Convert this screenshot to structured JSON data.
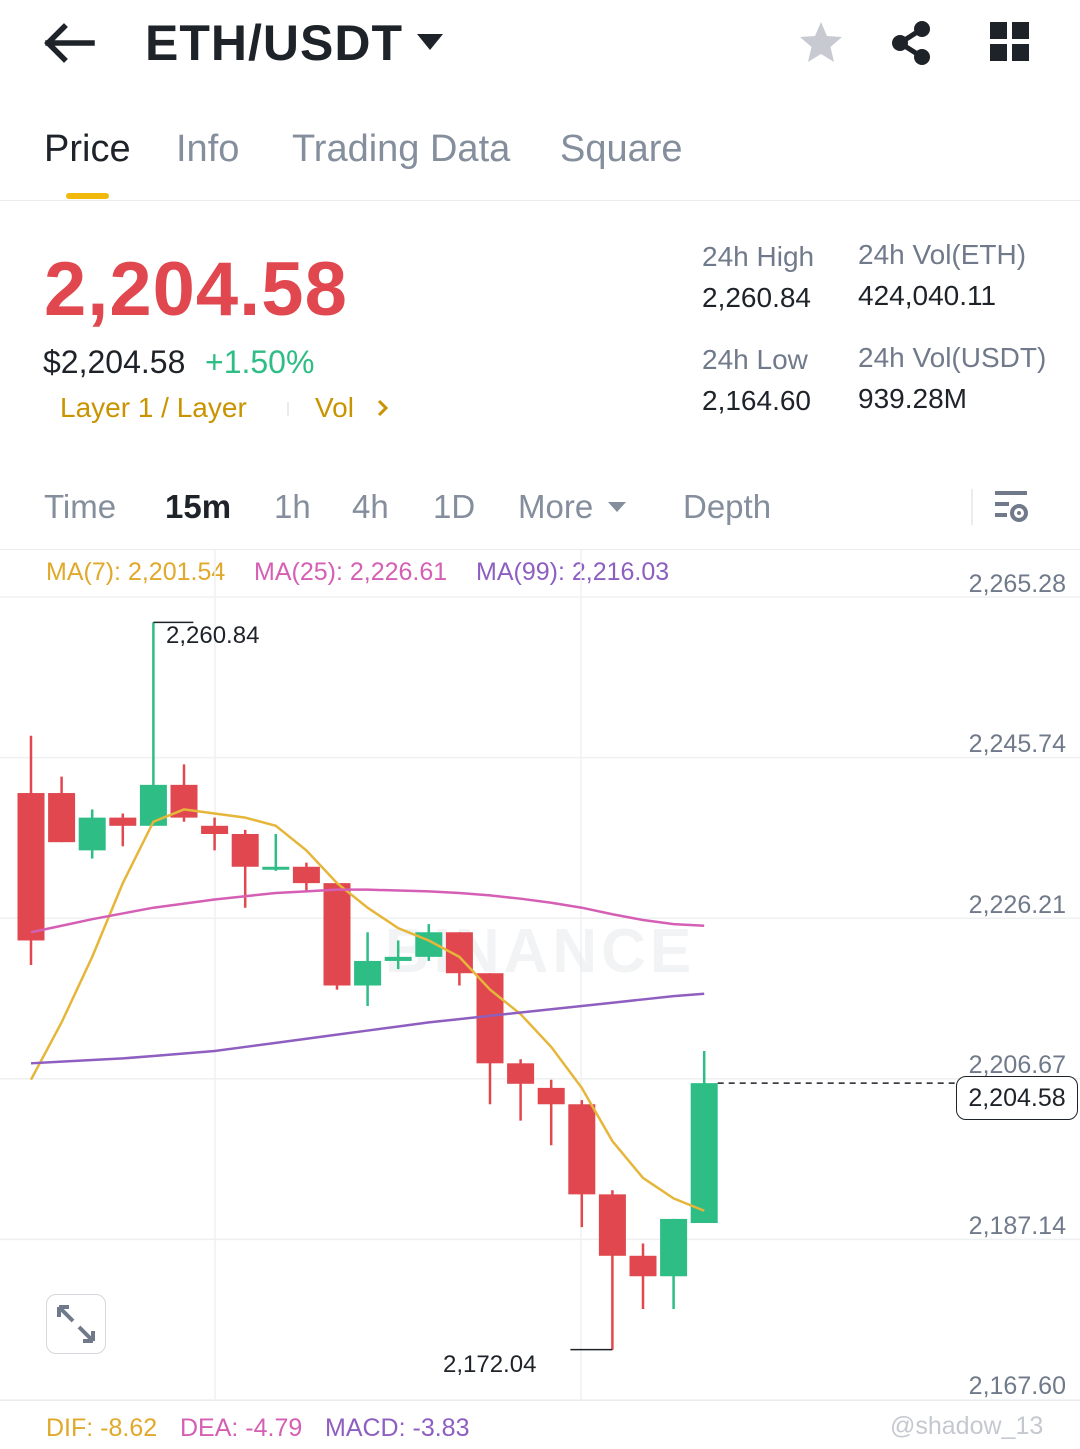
{
  "header": {
    "title": "ETH/USDT",
    "icons": [
      "back-arrow-icon",
      "chevron-down-icon",
      "star-icon",
      "share-icon",
      "grid-icon"
    ]
  },
  "tabs": [
    {
      "label": "Price",
      "active": true
    },
    {
      "label": "Info",
      "active": false
    },
    {
      "label": "Trading Data",
      "active": false
    },
    {
      "label": "Square",
      "active": false
    }
  ],
  "ticker": {
    "last_price": "2,204.58",
    "usd_price": "$2,204.58",
    "change": "+1.50%",
    "tag_label": "Layer 1 / Layer",
    "vol_label": "Vol",
    "stats": {
      "high_label": "24h High",
      "high_value": "2,260.84",
      "low_label": "24h Low",
      "low_value": "2,164.60",
      "vol_eth_label": "24h Vol(ETH)",
      "vol_eth_value": "424,040.11",
      "vol_usdt_label": "24h Vol(USDT)",
      "vol_usdt_value": "939.28M"
    }
  },
  "intervals": {
    "time": "Time",
    "m15": "15m",
    "h1": "1h",
    "h4": "4h",
    "d1": "1D",
    "more": "More",
    "depth": "Depth"
  },
  "chart": {
    "ma7": "MA(7): 2,201.54",
    "ma25": "MA(25): 2,226.61",
    "ma99": "MA(99): 2,216.03",
    "axis_labels": [
      "2,265.28",
      "2,245.74",
      "2,226.21",
      "2,206.67",
      "2,187.14",
      "2,167.60"
    ],
    "current_price": "2,204.58",
    "high_annotation": "2,260.84",
    "low_annotation": "2,172.04",
    "watermark": "BINANCE",
    "colors": {
      "up": "#2ebd85",
      "down": "#e0474e",
      "ma7": "#e6b63a",
      "ma25": "#d55fb4",
      "ma99": "#8e5fc0"
    }
  },
  "chart_data": {
    "type": "candlestick",
    "ylim": [
      2167.6,
      2265.28
    ],
    "candles": [
      {
        "o": 2240.0,
        "h": 2247.0,
        "l": 2219.0,
        "c": 2222.0
      },
      {
        "o": 2240.0,
        "h": 2242.0,
        "l": 2234.0,
        "c": 2234.0
      },
      {
        "o": 2233.0,
        "h": 2238.0,
        "l": 2232.0,
        "c": 2237.0
      },
      {
        "o": 2237.0,
        "h": 2237.5,
        "l": 2233.5,
        "c": 2236.0
      },
      {
        "o": 2236.0,
        "h": 2260.84,
        "l": 2236.0,
        "c": 2241.0
      },
      {
        "o": 2241.0,
        "h": 2243.5,
        "l": 2236.5,
        "c": 2237.0
      },
      {
        "o": 2236.0,
        "h": 2237.0,
        "l": 2233.0,
        "c": 2235.0
      },
      {
        "o": 2235.0,
        "h": 2235.5,
        "l": 2226.0,
        "c": 2231.0
      },
      {
        "o": 2231.0,
        "h": 2235.0,
        "l": 2230.5,
        "c": 2231.0
      },
      {
        "o": 2231.0,
        "h": 2231.5,
        "l": 2228.0,
        "c": 2229.0
      },
      {
        "o": 2229.0,
        "h": 2229.0,
        "l": 2216.0,
        "c": 2216.5
      },
      {
        "o": 2216.5,
        "h": 2223.0,
        "l": 2214.0,
        "c": 2219.5
      },
      {
        "o": 2219.5,
        "h": 2222.0,
        "l": 2218.5,
        "c": 2220.0
      },
      {
        "o": 2220.0,
        "h": 2224.0,
        "l": 2219.5,
        "c": 2223.0
      },
      {
        "o": 2223.0,
        "h": 2223.0,
        "l": 2216.5,
        "c": 2218.0
      },
      {
        "o": 2218.0,
        "h": 2218.0,
        "l": 2202.0,
        "c": 2207.0
      },
      {
        "o": 2207.0,
        "h": 2207.5,
        "l": 2200.0,
        "c": 2204.5
      },
      {
        "o": 2204.0,
        "h": 2205.0,
        "l": 2197.0,
        "c": 2202.0
      },
      {
        "o": 2202.0,
        "h": 2202.5,
        "l": 2187.0,
        "c": 2191.0
      },
      {
        "o": 2191.0,
        "h": 2191.5,
        "l": 2172.04,
        "c": 2183.5
      },
      {
        "o": 2183.5,
        "h": 2185.0,
        "l": 2177.0,
        "c": 2181.0
      },
      {
        "o": 2181.0,
        "h": 2188.0,
        "l": 2177.0,
        "c": 2188.0
      },
      {
        "o": 2187.5,
        "h": 2208.5,
        "l": 2187.5,
        "c": 2204.58
      }
    ],
    "ma7": [
      2205.0,
      2212.0,
      2220.0,
      2229.0,
      2236.5,
      2238.0,
      2237.5,
      2237.0,
      2236.0,
      2233.0,
      2229.0,
      2226.0,
      2223.5,
      2222.0,
      2220.0,
      2216.0,
      2213.0,
      2209.0,
      2204.0,
      2197.5,
      2193.0,
      2190.5,
      2189.0
    ],
    "ma25": [
      2223.0,
      2223.8,
      2224.6,
      2225.3,
      2226.0,
      2226.5,
      2227.0,
      2227.4,
      2227.8,
      2228.0,
      2228.2,
      2228.2,
      2228.1,
      2228.0,
      2227.8,
      2227.5,
      2227.1,
      2226.6,
      2226.0,
      2225.2,
      2224.5,
      2224.0,
      2223.8
    ],
    "ma99": [
      2207.0,
      2207.2,
      2207.4,
      2207.6,
      2207.9,
      2208.2,
      2208.5,
      2209.0,
      2209.5,
      2210.0,
      2210.5,
      2211.0,
      2211.5,
      2212.0,
      2212.4,
      2212.8,
      2213.2,
      2213.6,
      2214.0,
      2214.4,
      2214.8,
      2215.2,
      2215.5
    ]
  },
  "macd": {
    "dif": "DIF: -8.62",
    "dea": "DEA: -4.79",
    "macd": "MACD: -3.83"
  },
  "watermark_user": "@shadow_13"
}
